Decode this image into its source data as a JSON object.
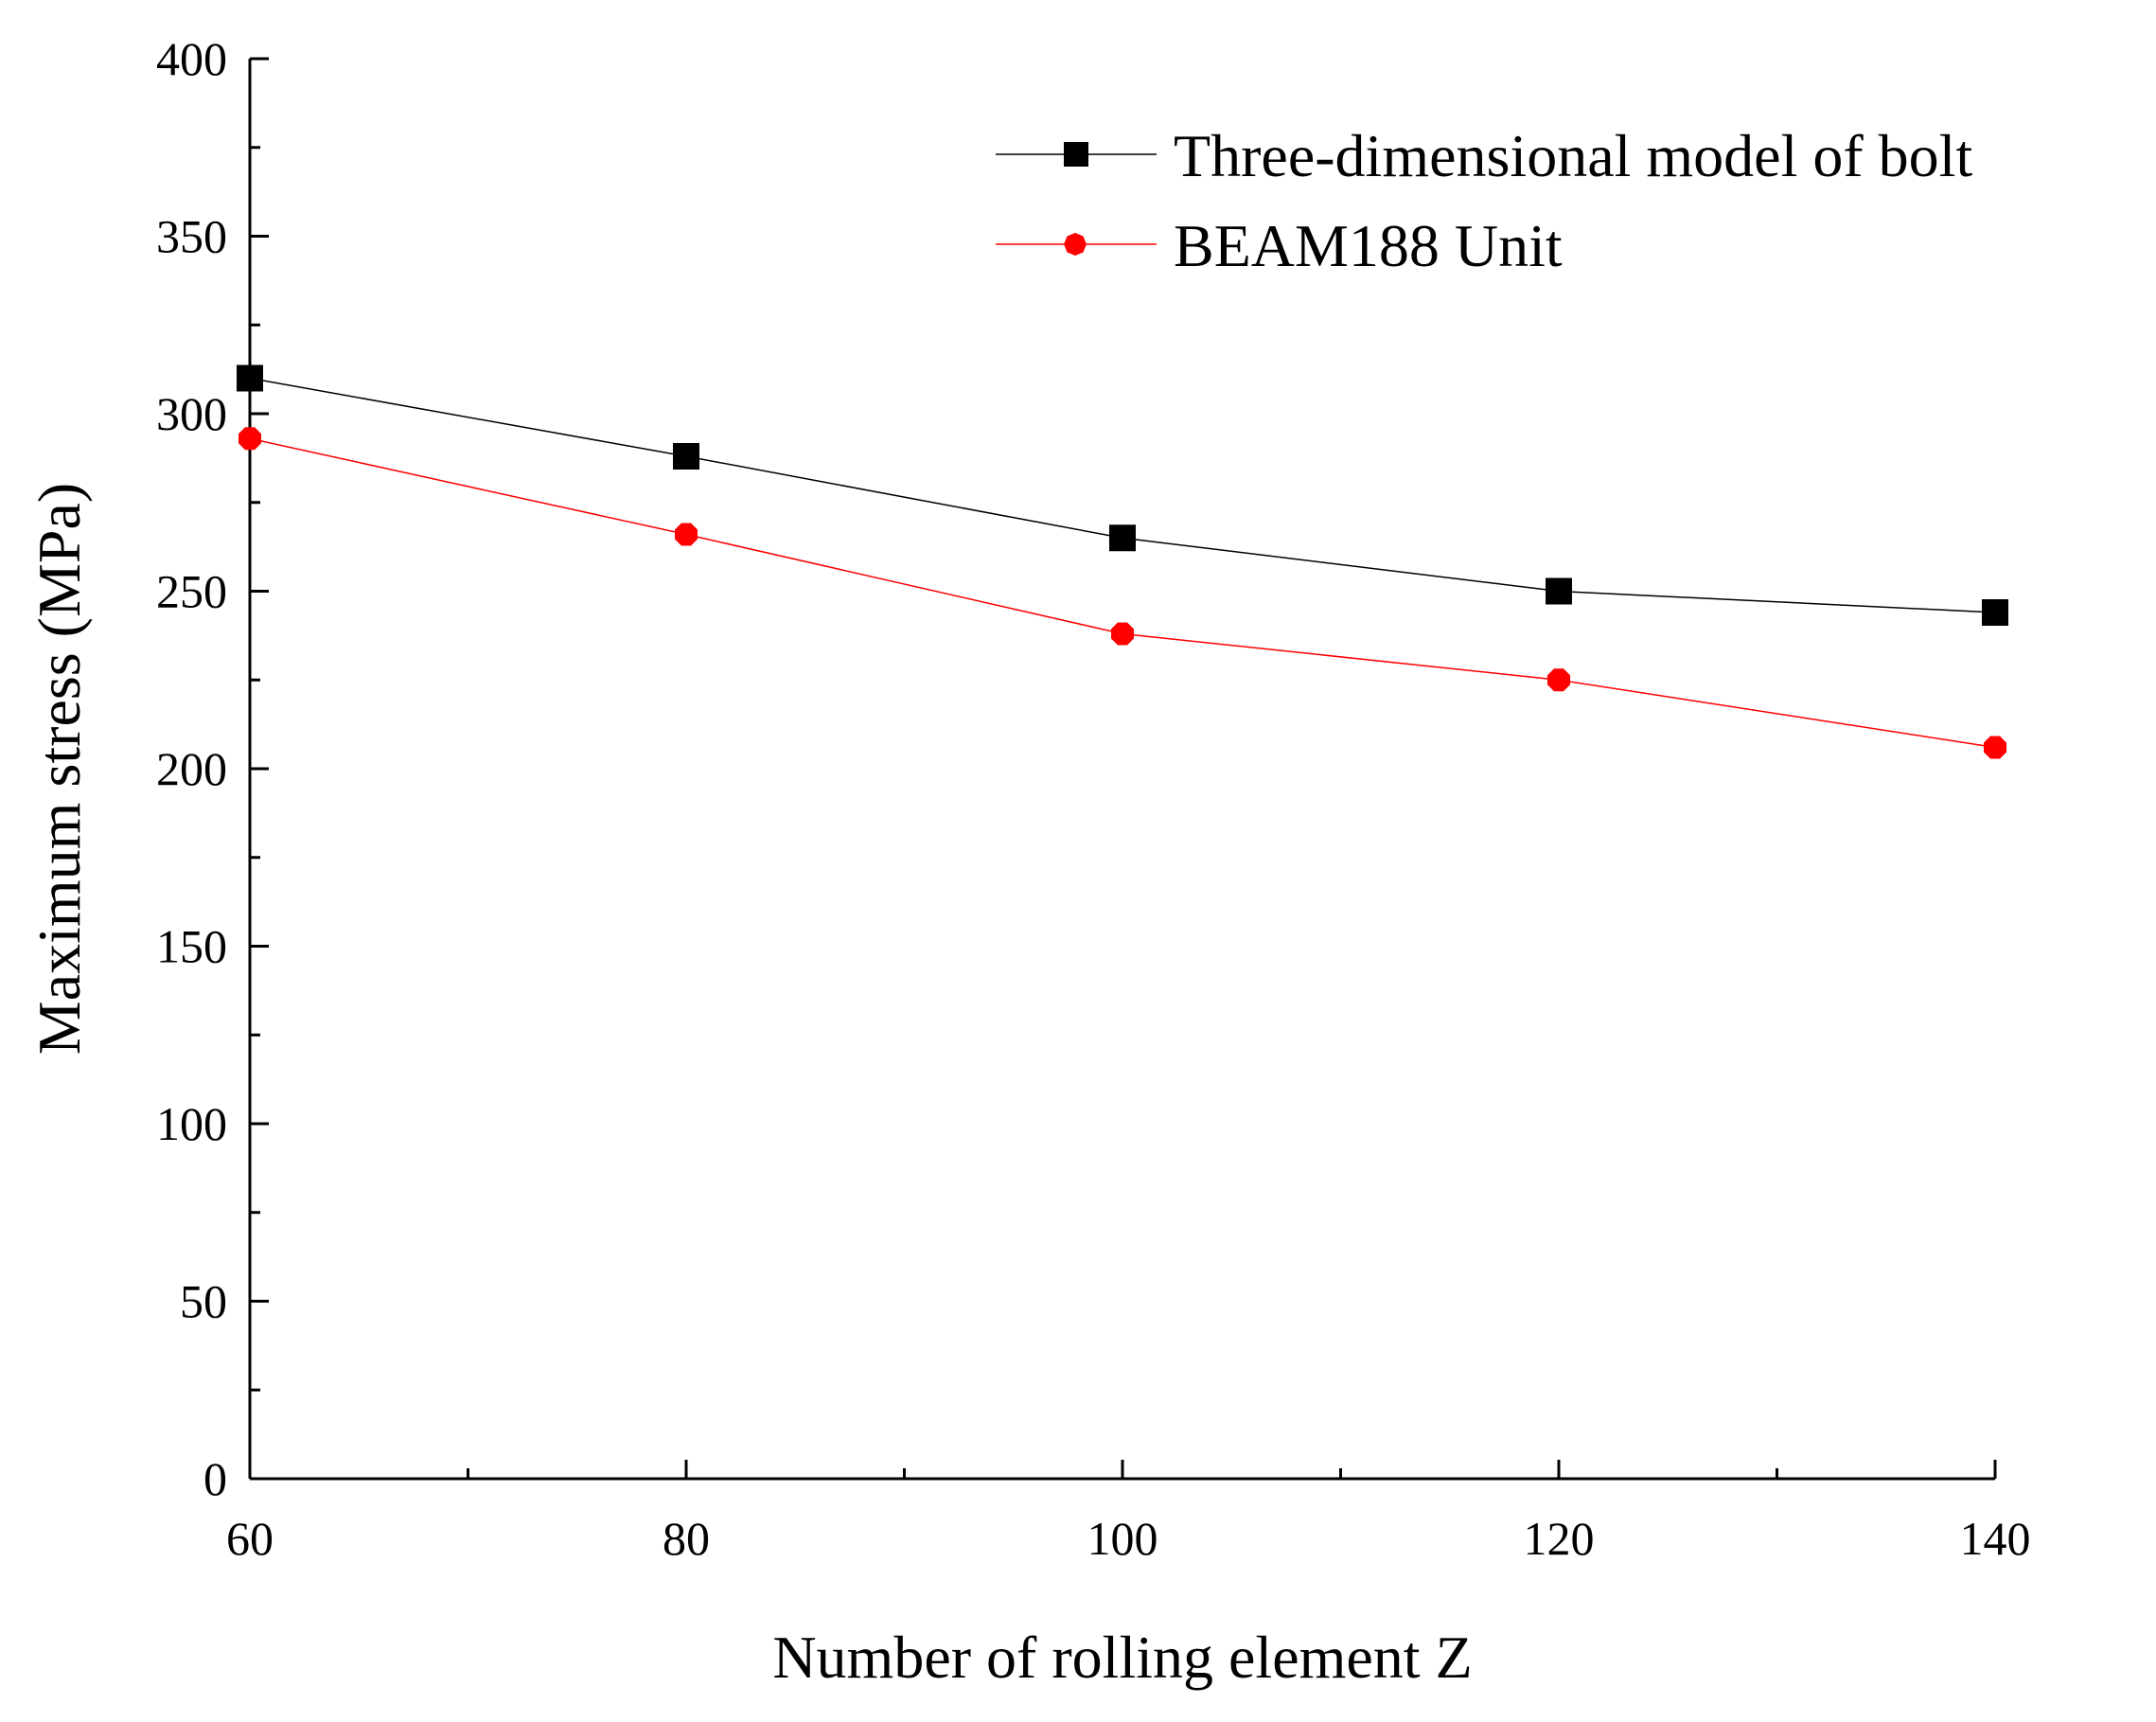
{
  "chart_data": {
    "type": "line",
    "title": "",
    "xlabel": "Number of rolling element Z",
    "ylabel": "Maximum stress (MPa)",
    "x": [
      60,
      80,
      100,
      120,
      140
    ],
    "xlim": [
      60,
      140
    ],
    "ylim": [
      0,
      400
    ],
    "xticks": [
      60,
      80,
      100,
      120,
      140
    ],
    "yticks": [
      0,
      50,
      100,
      150,
      200,
      250,
      300,
      350,
      400
    ],
    "grid": false,
    "legend_position": "top-right",
    "series": [
      {
        "name": "Three-dimensional model of bolt",
        "values": [
          310,
          288,
          265,
          250,
          244
        ],
        "color": "#000000",
        "marker": "square"
      },
      {
        "name": "BEAM188 Unit",
        "values": [
          293,
          266,
          238,
          225,
          206
        ],
        "color": "#ff0000",
        "marker": "octagon"
      }
    ]
  }
}
